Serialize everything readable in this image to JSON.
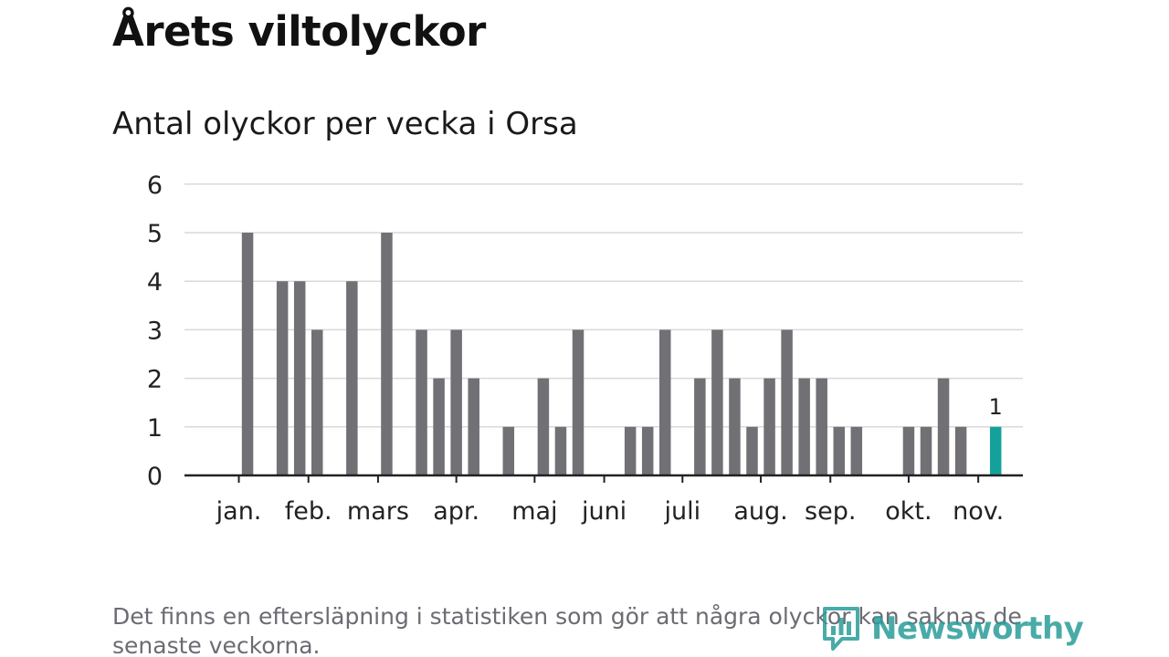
{
  "title": "Årets viltolyckor",
  "subtitle": "Antal olyckor per vecka i Orsa",
  "footnote": "Det finns en eftersläpning i statistiken som gör att några olyckor kan saknas de senaste veckorna.",
  "brand": "Newsworthy",
  "colors": {
    "bar": "#717075",
    "highlight": "#14a19b",
    "grid": "#d9d9d9",
    "axis": "#222222",
    "tick_label": "#222222",
    "brand": "#2a9d9a"
  },
  "chart_data": {
    "type": "bar",
    "title": "Antal olyckor per vecka i Orsa",
    "xlabel": "",
    "ylabel": "",
    "ylim": [
      0,
      6
    ],
    "yticks": [
      "0",
      "1",
      "2",
      "3",
      "4",
      "5",
      "6"
    ],
    "weeks": [
      1,
      2,
      3,
      4,
      5,
      6,
      7,
      8,
      9,
      10,
      11,
      12,
      13,
      14,
      15,
      16,
      17,
      18,
      19,
      20,
      21,
      22,
      23,
      24,
      25,
      26,
      27,
      28,
      29,
      30,
      31,
      32,
      33,
      34,
      35,
      36,
      37,
      38,
      39,
      40,
      41,
      42,
      43,
      44,
      45
    ],
    "values": [
      0,
      5,
      0,
      4,
      4,
      3,
      0,
      4,
      0,
      5,
      0,
      3,
      2,
      3,
      2,
      0,
      1,
      0,
      2,
      1,
      3,
      0,
      0,
      1,
      1,
      3,
      0,
      2,
      3,
      2,
      1,
      2,
      3,
      2,
      2,
      1,
      1,
      0,
      0,
      1,
      1,
      2,
      1,
      0,
      1
    ],
    "highlight_index": 44,
    "highlight_label": "1",
    "month_labels": [
      {
        "label": "jan.",
        "week": 1.5
      },
      {
        "label": "feb.",
        "week": 5.5
      },
      {
        "label": "mars",
        "week": 9.5
      },
      {
        "label": "apr.",
        "week": 14
      },
      {
        "label": "maj",
        "week": 18.5
      },
      {
        "label": "juni",
        "week": 22.5
      },
      {
        "label": "juli",
        "week": 27
      },
      {
        "label": "aug.",
        "week": 31.5
      },
      {
        "label": "sep.",
        "week": 35.5
      },
      {
        "label": "okt.",
        "week": 40
      },
      {
        "label": "nov.",
        "week": 44
      }
    ]
  }
}
